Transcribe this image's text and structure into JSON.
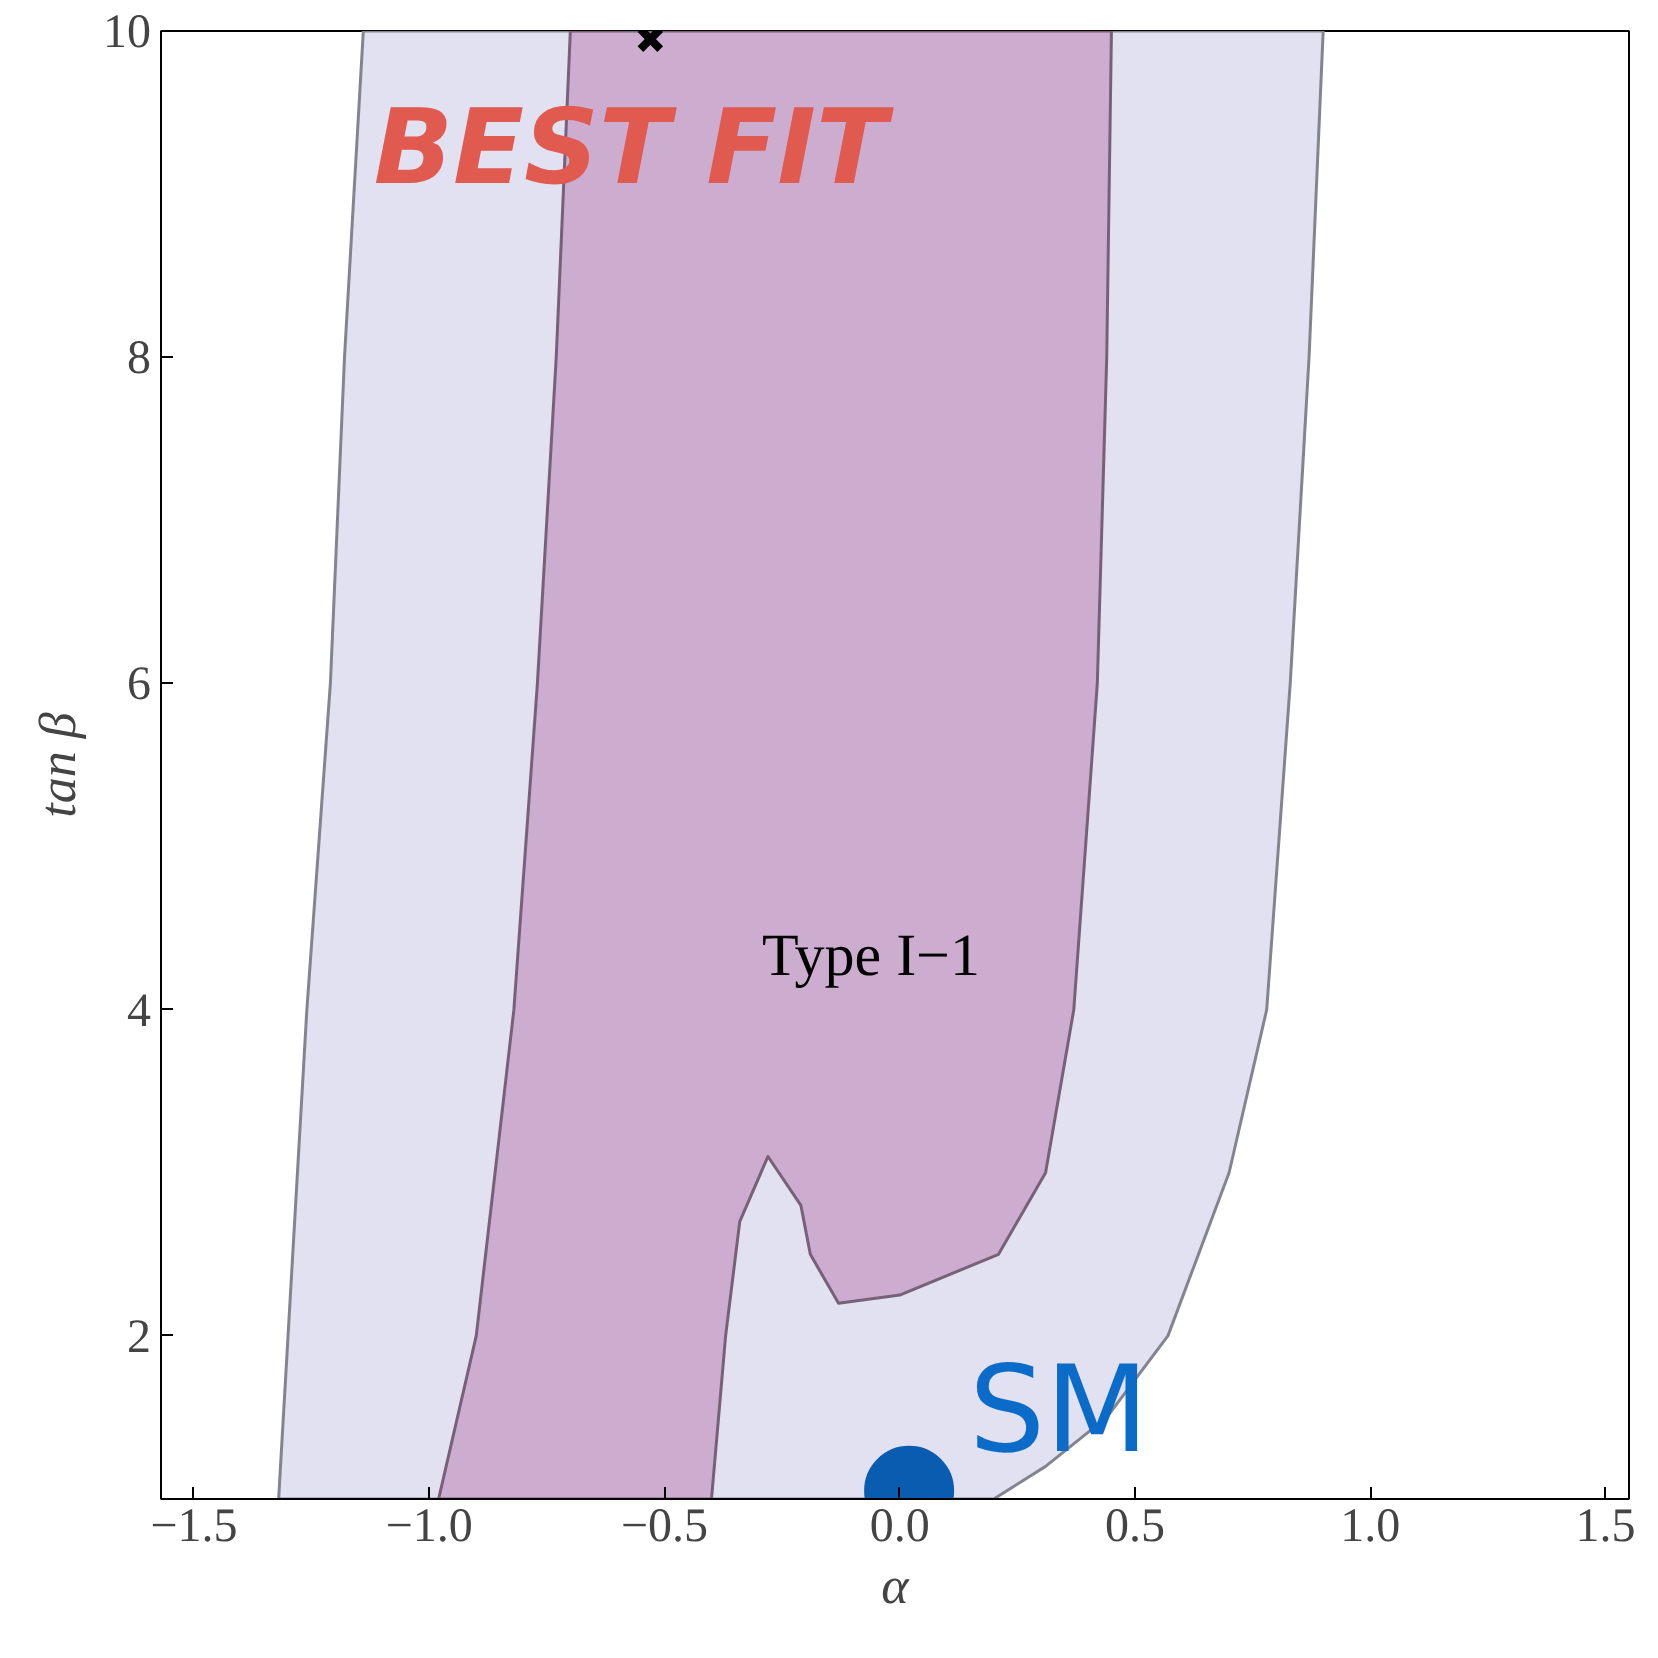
{
  "chart_data": {
    "type": "area",
    "xlabel": "α",
    "ylabel": "tan β",
    "xlim": [
      -1.57,
      1.55
    ],
    "ylim": [
      1,
      10
    ],
    "xticks": [
      {
        "value": -1.5,
        "label": "−1.5"
      },
      {
        "value": -1.0,
        "label": "−1.0"
      },
      {
        "value": -0.5,
        "label": "−0.5"
      },
      {
        "value": 0.0,
        "label": "0.0"
      },
      {
        "value": 0.5,
        "label": "0.5"
      },
      {
        "value": 1.0,
        "label": "1.0"
      },
      {
        "value": 1.5,
        "label": "1.5"
      }
    ],
    "yticks": [
      2,
      4,
      6,
      8,
      10
    ],
    "grid": false,
    "series": [
      {
        "color": "#dcdcef",
        "x": [
          -1.32,
          -1.3,
          -1.26,
          -1.21,
          -1.18,
          -1.14,
          0.9,
          0.87,
          0.83,
          0.78,
          0.7,
          0.57,
          0.44,
          0.31,
          0.2
        ],
        "values": [
          1,
          2,
          4,
          6,
          8,
          10,
          10,
          8,
          6,
          4,
          3,
          2,
          1.5,
          1.2,
          1
        ]
      },
      {
        "color": "#c9a3c9",
        "x": [
          -0.98,
          -0.9,
          -0.82,
          -0.77,
          -0.73,
          -0.7,
          0.45,
          0.44,
          0.42,
          0.37,
          0.31,
          0.21,
          0.0,
          -0.13,
          -0.19,
          -0.21,
          -0.28,
          -0.34,
          -0.37,
          -0.4
        ],
        "values": [
          1,
          2,
          4,
          6,
          8,
          10,
          10,
          8,
          6,
          4,
          3,
          2.5,
          2.25,
          2.2,
          2.5,
          2.8,
          3.1,
          2.7,
          2.0,
          1.0
        ]
      },
      {
        "type": "scatter",
        "marker": "cross",
        "color": "#000000",
        "x": [
          -0.53
        ],
        "values": [
          9.95
        ]
      },
      {
        "type": "scatter",
        "marker": "circle",
        "color": "#0a5cb0",
        "x": [
          0.02
        ],
        "values": [
          1.05
        ]
      }
    ],
    "annotations": [
      {
        "text": "BEST FIT",
        "x": -0.53,
        "y": 9.95
      },
      "Type I−1",
      {
        "text": "SM",
        "x": 0.02,
        "y": 1.05
      }
    ]
  }
}
